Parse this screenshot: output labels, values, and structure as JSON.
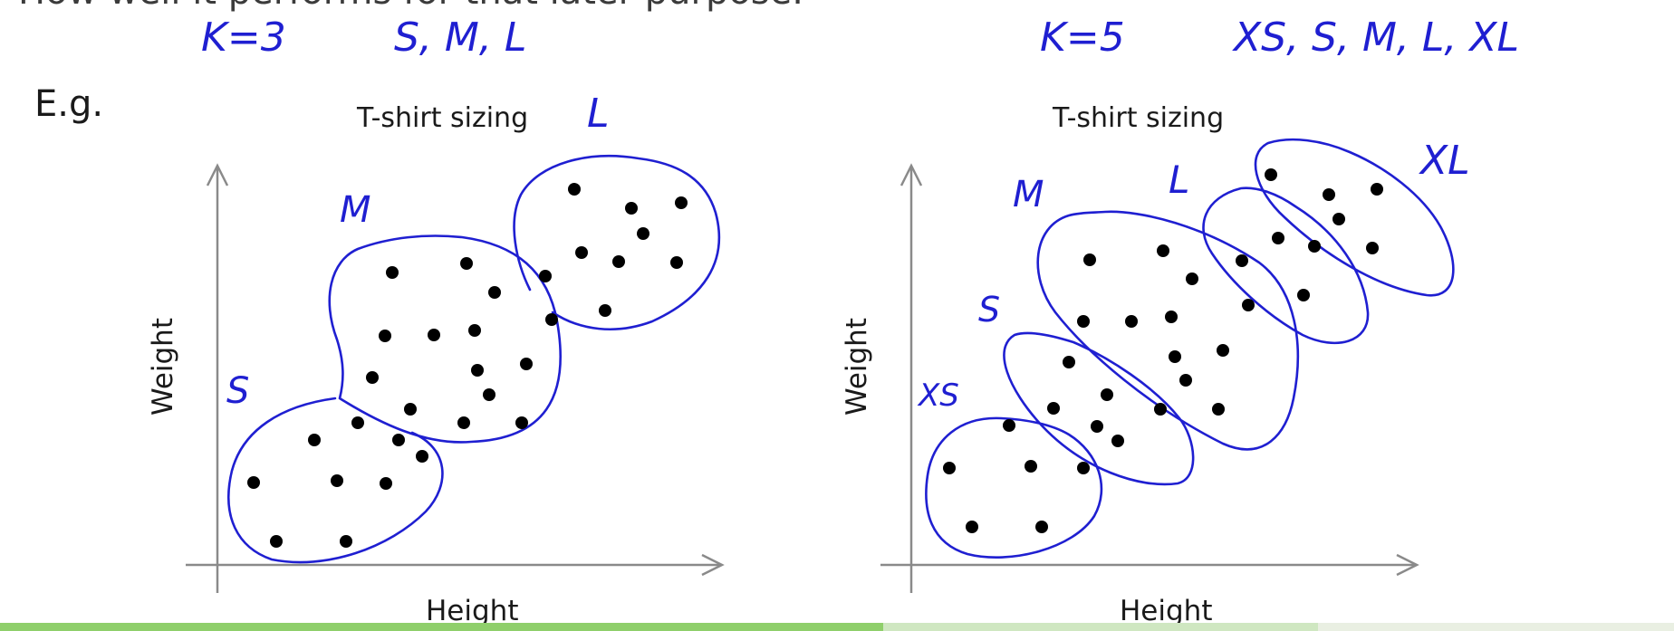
{
  "header_partial_text": "How well it performs for that later purpose.",
  "example_label": "E.g.",
  "left": {
    "k_note": "K=3",
    "sizes_note": "S, M, L",
    "title": "T-shirt sizing",
    "xlabel": "Height",
    "ylabel": "Weight",
    "cluster_labels": [
      "S",
      "M",
      "L"
    ]
  },
  "right": {
    "k_note": "K=5",
    "sizes_note": "XS, S, M, L, XL",
    "title": "T-shirt sizing",
    "xlabel": "Height",
    "ylabel": "Weight",
    "cluster_labels": [
      "XS",
      "S",
      "M",
      "L",
      "XL"
    ]
  },
  "colors": {
    "ink": "#1f1fd1",
    "points": "#000000",
    "axis": "#8a8a8a"
  }
}
